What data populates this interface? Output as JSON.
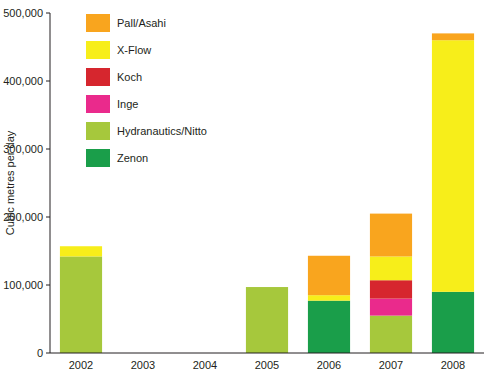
{
  "chart_data": {
    "type": "bar",
    "stacked": true,
    "legend": "upper left",
    "grid": false,
    "y_label": "Cubic metres per day",
    "categories": [
      "2002",
      "2003",
      "2004",
      "2005",
      "2006",
      "2007",
      "2008"
    ],
    "ylim": [
      0,
      500000
    ],
    "yticks": [
      0,
      {
        "value": 100000,
        "label": "100,000"
      },
      {
        "value": 200000,
        "label": "200,000"
      },
      {
        "value": 300000,
        "label": "300,000"
      },
      {
        "value": 400000,
        "label": "400,000"
      },
      {
        "value": 500000,
        "label": "500,000"
      }
    ],
    "series": [
      {
        "name": "Zenon",
        "color": "#1a9e4a",
        "values": [
          0,
          0,
          0,
          0,
          77000,
          0,
          90000
        ]
      },
      {
        "name": "Hydranautics/Nitto",
        "color": "#a6c83c",
        "values": [
          142000,
          0,
          0,
          97000,
          0,
          55000,
          0
        ]
      },
      {
        "name": "Inge",
        "color": "#ea2a8c",
        "values": [
          0,
          0,
          0,
          0,
          0,
          25000,
          0
        ]
      },
      {
        "name": "Koch",
        "color": "#d6262e",
        "values": [
          0,
          0,
          0,
          0,
          0,
          27000,
          0
        ]
      },
      {
        "name": "X-Flow",
        "color": "#f7ee1a",
        "values": [
          15000,
          0,
          0,
          0,
          8000,
          35000,
          370000
        ]
      },
      {
        "name": "Pall/Asahi",
        "color": "#f9a51e",
        "values": [
          0,
          0,
          0,
          0,
          58000,
          63000,
          10000
        ]
      }
    ]
  }
}
